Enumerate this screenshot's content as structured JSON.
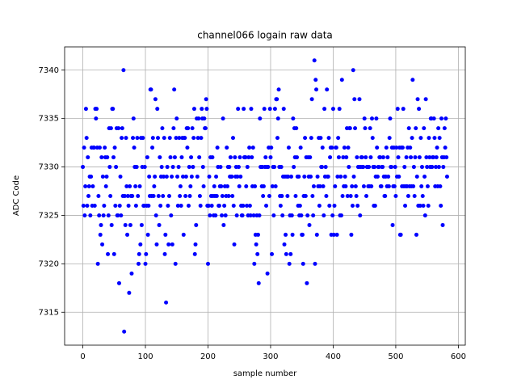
{
  "chart_data": {
    "type": "scatter",
    "title": "channel066 logain raw data",
    "xlabel": "sample number",
    "ylabel": "ADC Code",
    "xlim": [
      -29.1,
      611.1
    ],
    "xticks": [
      0,
      100,
      200,
      300,
      400,
      500,
      600
    ],
    "ylim": [
      7311.6,
      7342.4
    ],
    "yticks": [
      7315,
      7320,
      7325,
      7330,
      7335,
      7340
    ],
    "grid": true,
    "series": [
      {
        "color": "#0000ff",
        "x": [
          0,
          1,
          2,
          3,
          4,
          5,
          6,
          7,
          8,
          9,
          10,
          11,
          12,
          13,
          14,
          15,
          16,
          17,
          18,
          19,
          20,
          21,
          22,
          23,
          24,
          25,
          26,
          27,
          28,
          29,
          30,
          31,
          32,
          33,
          34,
          35,
          36,
          37,
          38,
          39,
          40,
          41,
          42,
          43,
          44,
          45,
          46,
          47,
          48,
          49,
          50,
          51,
          52,
          53,
          54,
          55,
          56,
          57,
          58,
          59,
          60,
          61,
          62,
          63,
          64,
          65,
          66,
          67,
          68,
          69,
          70,
          71,
          72,
          73,
          74,
          75,
          76,
          77,
          78,
          79,
          80,
          81,
          82,
          83,
          84,
          85,
          86,
          87,
          88,
          89,
          90,
          91,
          92,
          93,
          94,
          95,
          96,
          97,
          98,
          99,
          100,
          101,
          102,
          103,
          104,
          105,
          106,
          107,
          108,
          109,
          110,
          111,
          112,
          113,
          114,
          115,
          116,
          117,
          118,
          119,
          120,
          121,
          122,
          123,
          124,
          125,
          126,
          127,
          128,
          129,
          130,
          131,
          132,
          133,
          134,
          135,
          136,
          137,
          138,
          139,
          140,
          141,
          142,
          143,
          144,
          145,
          146,
          147,
          148,
          149,
          150,
          151,
          152,
          153,
          154,
          155,
          156,
          157,
          158,
          159,
          160,
          161,
          162,
          163,
          164,
          165,
          166,
          167,
          168,
          169,
          170,
          171,
          172,
          173,
          174,
          175,
          176,
          177,
          178,
          179,
          180,
          181,
          182,
          183,
          184,
          185,
          186,
          187,
          188,
          189,
          190,
          191,
          192,
          193,
          194,
          195,
          196,
          197,
          198,
          199,
          200,
          201,
          202,
          203,
          204,
          205,
          206,
          207,
          208,
          209,
          210,
          211,
          212,
          213,
          214,
          215,
          216,
          217,
          218,
          219,
          220,
          221,
          222,
          223,
          224,
          225,
          226,
          227,
          228,
          229,
          230,
          231,
          232,
          233,
          234,
          235,
          236,
          237,
          238,
          239,
          240,
          241,
          242,
          243,
          244,
          245,
          246,
          247,
          248,
          249,
          250,
          251,
          252,
          253,
          254,
          255,
          256,
          257,
          258,
          259,
          260,
          261,
          262,
          263,
          264,
          265,
          266,
          267,
          268,
          269,
          270,
          271,
          272,
          273,
          274,
          275,
          276,
          277,
          278,
          279,
          280,
          281,
          282,
          283,
          284,
          285,
          286,
          287,
          288,
          289,
          290,
          291,
          292,
          293,
          294,
          295,
          296,
          297,
          298,
          299,
          300,
          301,
          302,
          303,
          304,
          305,
          306,
          307,
          308,
          309,
          310,
          311,
          312,
          313,
          314,
          315,
          316,
          317,
          318,
          319,
          320,
          321,
          322,
          323,
          324,
          325,
          326,
          327,
          328,
          329,
          330,
          331,
          332,
          333,
          334,
          335,
          336,
          337,
          338,
          339,
          340,
          341,
          342,
          343,
          344,
          345,
          346,
          347,
          348,
          349,
          350,
          351,
          352,
          353,
          354,
          355,
          356,
          357,
          358,
          359,
          360,
          361,
          362,
          363,
          364,
          365,
          366,
          367,
          368,
          369,
          370,
          371,
          372,
          373,
          374,
          375,
          376,
          377,
          378,
          379,
          380,
          381,
          382,
          383,
          384,
          385,
          386,
          387,
          388,
          389,
          390,
          391,
          392,
          393,
          394,
          395,
          396,
          397,
          398,
          399,
          400,
          401,
          402,
          403,
          404,
          405,
          406,
          407,
          408,
          409,
          410,
          411,
          412,
          413,
          414,
          415,
          416,
          417,
          418,
          419,
          420,
          421,
          422,
          423,
          424,
          425,
          426,
          427,
          428,
          429,
          430,
          431,
          432,
          433,
          434,
          435,
          436,
          437,
          438,
          439,
          440,
          441,
          442,
          443,
          444,
          445,
          446,
          447,
          448,
          449,
          450,
          451,
          452,
          453,
          454,
          455,
          456,
          457,
          458,
          459,
          460,
          461,
          462,
          463,
          464,
          465,
          466,
          467,
          468,
          469,
          470,
          471,
          472,
          473,
          474,
          475,
          476,
          477,
          478,
          479,
          480,
          481,
          482,
          483,
          484,
          485,
          486,
          487,
          488,
          489,
          490,
          491,
          492,
          493,
          494,
          495,
          496,
          497,
          498,
          499,
          500,
          501,
          502,
          503,
          504,
          505,
          506,
          507,
          508,
          509,
          510,
          511,
          512,
          513,
          514,
          515,
          516,
          517,
          518,
          519,
          520,
          521,
          522,
          523,
          524,
          525,
          526,
          527,
          528,
          529,
          530,
          531,
          532,
          533,
          534,
          535,
          536,
          537,
          538,
          539,
          540,
          541,
          542,
          543,
          544,
          545,
          546,
          547,
          548,
          549,
          550,
          551,
          552,
          553,
          554,
          555,
          556,
          557,
          558,
          559,
          560,
          561,
          562,
          563,
          564,
          565,
          566,
          567,
          568,
          569,
          570,
          571,
          572,
          573,
          574,
          575,
          576,
          577,
          578,
          579,
          580,
          581,
          582
        ],
        "values": [
          7330,
          7326,
          7332,
          7325,
          7328,
          7336,
          7333,
          7326,
          7331,
          7327,
          7328,
          7329,
          7325,
          7329,
          7332,
          7326,
          7328,
          7332,
          7332,
          7326,
          7336,
          7335,
          7336,
          7332,
          7320,
          7327,
          7325,
          7332,
          7323,
          7324,
          7331,
          7322,
          7329,
          7325,
          7326,
          7332,
          7331,
          7328,
          7329,
          7331,
          7321,
          7325,
          7334,
          7330,
          7327,
          7334,
          7324,
          7336,
          7336,
          7331,
          7321,
          7332,
          7326,
          7330,
          7334,
          7325,
          7325,
          7334,
          7318,
          7326,
          7329,
          7325,
          7333,
          7334,
          7327,
          7340,
          7313,
          7327,
          7324,
          7333,
          7328,
          7323,
          7327,
          7326,
          7317,
          7328,
          7324,
          7327,
          7319,
          7327,
          7333,
          7335,
          7332,
          7330,
          7328,
          7326,
          7330,
          7333,
          7327,
          7320,
          7321,
          7328,
          7322,
          7333,
          7324,
          7330,
          7333,
          7326,
          7326,
          7330,
          7320,
          7321,
          7326,
          7331,
          7323,
          7326,
          7329,
          7327,
          7338,
          7338,
          7327,
          7332,
          7333,
          7327,
          7328,
          7329,
          7337,
          7325,
          7322,
          7336,
          7333,
          7327,
          7324,
          7331,
          7326,
          7329,
          7330,
          7334,
          7327,
          7329,
          7333,
          7321,
          7323,
          7316,
          7329,
          7330,
          7326,
          7322,
          7327,
          7333,
          7331,
          7325,
          7329,
          7322,
          7330,
          7334,
          7338,
          7331,
          7320,
          7333,
          7335,
          7329,
          7326,
          7330,
          7333,
          7327,
          7328,
          7326,
          7331,
          7333,
          7329,
          7323,
          7333,
          7333,
          7327,
          7329,
          7334,
          7332,
          7334,
          7326,
          7330,
          7327,
          7328,
          7331,
          7329,
          7334,
          7330,
          7333,
          7336,
          7321,
          7322,
          7324,
          7335,
          7329,
          7333,
          7335,
          7331,
          7327,
          7326,
          7333,
          7336,
          7335,
          7330,
          7328,
          7335,
          7334,
          7334,
          7337,
          7336,
          7326,
          7320,
          7326,
          7329,
          7325,
          7331,
          7327,
          7326,
          7331,
          7327,
          7325,
          7328,
          7327,
          7325,
          7329,
          7327,
          7332,
          7330,
          7326,
          7326,
          7328,
          7330,
          7328,
          7325,
          7327,
          7335,
          7324,
          7326,
          7328,
          7325,
          7327,
          7332,
          7328,
          7330,
          7327,
          7330,
          7329,
          7331,
          7329,
          7329,
          7327,
          7333,
          7326,
          7322,
          7331,
          7329,
          7330,
          7325,
          7329,
          7336,
          7330,
          7328,
          7331,
          7329,
          7326,
          7325,
          7325,
          7326,
          7336,
          7331,
          7331,
          7331,
          7328,
          7326,
          7330,
          7325,
          7331,
          7332,
          7326,
          7325,
          7336,
          7331,
          7328,
          7332,
          7325,
          7320,
          7328,
          7323,
          7322,
          7325,
          7321,
          7323,
          7318,
          7325,
          7335,
          7330,
          7330,
          7328,
          7330,
          7327,
          7328,
          7336,
          7330,
          7331,
          7326,
          7330,
          7319,
          7330,
          7332,
          7327,
          7336,
          7331,
          7332,
          7321,
          7328,
          7330,
          7325,
          7330,
          7336,
          7328,
          7337,
          7337,
          7333,
          7335,
          7338,
          7330,
          7327,
          7326,
          7330,
          7327,
          7325,
          7329,
          7336,
          7322,
          7329,
          7323,
          7321,
          7329,
          7327,
          7329,
          7332,
          7320,
          7325,
          7321,
          7329,
          7325,
          7323,
          7335,
          7330,
          7334,
          7331,
          7327,
          7334,
          7331,
          7329,
          7326,
          7329,
          7325,
          7326,
          7332,
          7325,
          7323,
          7323,
          7320,
          7327,
          7329,
          7333,
          7327,
          7331,
          7318,
          7325,
          7331,
          7329,
          7324,
          7331,
          7329,
          7333,
          7337,
          7327,
          7325,
          7328,
          7341,
          7320,
          7339,
          7338,
          7323,
          7329,
          7328,
          7333,
          7326,
          7328,
          7333,
          7330,
          7330,
          7332,
          7328,
          7325,
          7336,
          7329,
          7330,
          7327,
          7338,
          7329,
          7329,
          7333,
          7326,
          7331,
          7332,
          7323,
          7332,
          7325,
          7336,
          7323,
          7326,
          7328,
          7332,
          7332,
          7323,
          7329,
          7333,
          7331,
          7336,
          7325,
          7329,
          7325,
          7339,
          7327,
          7331,
          7328,
          7332,
          7329,
          7328,
          7331,
          7334,
          7327,
          7332,
          7330,
          7334,
          7334,
          7327,
          7323,
          7328,
          7326,
          7340,
          7329,
          7337,
          7334,
          7328,
          7327,
          7331,
          7326,
          7330,
          7330,
          7337,
          7325,
          7330,
          7331,
          7331,
          7330,
          7330,
          7328,
          7335,
          7334,
          7331,
          7327,
          7330,
          7330,
          7328,
          7330,
          7328,
          7334,
          7331,
          7328,
          7335,
          7333,
          7330,
          7326,
          7330,
          7326,
          7329,
          7335,
          7332,
          7329,
          7330,
          7330,
          7331,
          7331,
          7328,
          7328,
          7330,
          7330,
          7331,
          7329,
          7327,
          7327,
          7329,
          7332,
          7328,
          7331,
          7329,
          7328,
          7333,
          7335,
          7330,
          7330,
          7332,
          7324,
          7328,
          7332,
          7328,
          7330,
          7327,
          7332,
          7329,
          7336,
          7331,
          7329,
          7332,
          7323,
          7323,
          7332,
          7328,
          7332,
          7336,
          7328,
          7330,
          7326,
          7328,
          7331,
          7328,
          7332,
          7327,
          7334,
          7328,
          7332,
          7331,
          7328,
          7333,
          7339,
          7328,
          7330,
          7327,
          7331,
          7334,
          7323,
          7329,
          7337,
          7326,
          7336,
          7331,
          7326,
          7333,
          7328,
          7330,
          7327,
          7326,
          7334,
          7329,
          7325,
          7337,
          7331,
          7330,
          7328,
          7326,
          7333,
          7331,
          7330,
          7335,
          7335,
          7330,
          7331,
          7331,
          7335,
          7333,
          7328,
          7330,
          7331,
          7332,
          7328,
          7334,
          7330,
          7333,
          7328,
          7326,
          7335,
          7331,
          7324,
          7330,
          7331,
          7334,
          7332,
          7335,
          7331,
          7329
        ]
      }
    ]
  }
}
